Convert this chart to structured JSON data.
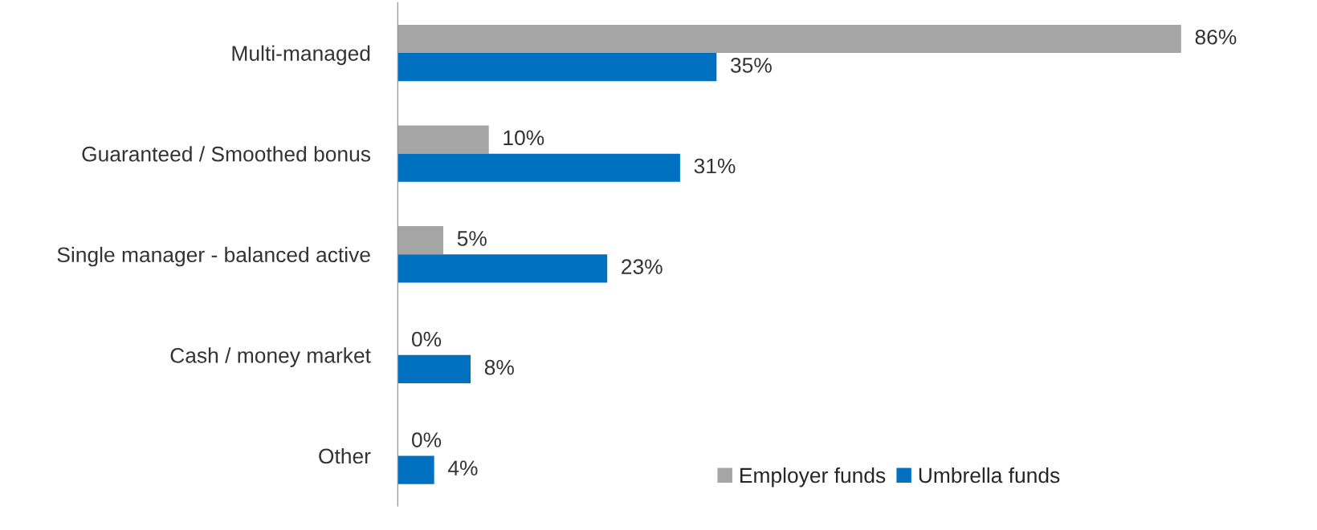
{
  "chart_data": {
    "type": "bar",
    "orientation": "horizontal",
    "categories": [
      "Multi-managed",
      "Guaranteed / Smoothed bonus",
      "Single manager - balanced active",
      "Cash / money market",
      "Other"
    ],
    "series": [
      {
        "name": "Employer funds",
        "color": "#a5a5a5",
        "values": [
          86,
          10,
          5,
          0,
          0
        ],
        "value_labels": [
          "86%",
          "10%",
          "5%",
          "0%",
          "0%"
        ]
      },
      {
        "name": "Umbrella funds",
        "color": "#0070c0",
        "values": [
          35,
          31,
          23,
          8,
          4
        ],
        "value_labels": [
          "35%",
          "31%",
          "23%",
          "8%",
          "4%"
        ]
      }
    ],
    "legend": "bottom right",
    "grid": false,
    "tick_labels": "y"
  }
}
